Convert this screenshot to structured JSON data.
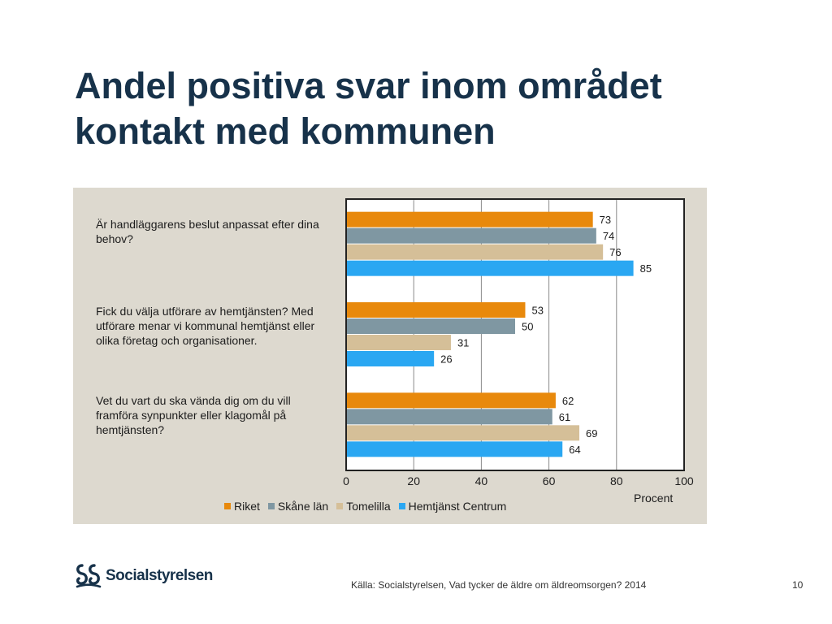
{
  "slide": {
    "title": "Andel positiva svar inom området kontakt med kommunen",
    "source": "Källa: Socialstyrelsen, Vad tycker de äldre om äldreomsorgen? 2014",
    "page_number": "10",
    "logo_text": "Socialstyrelsen"
  },
  "chart_data": {
    "type": "bar",
    "orientation": "horizontal",
    "categories": [
      "Är handläggarens beslut anpassat efter dina behov?",
      "Fick du välja utförare av hemtjänsten? Med utförare menar vi kommunal hemtjänst eller olika företag och organisationer.",
      "Vet du vart du ska vända dig om du vill framföra synpunkter eller klagomål på hemtjänsten?"
    ],
    "series": [
      {
        "name": "Riket",
        "color": "#e8890c",
        "values": [
          73,
          53,
          62
        ]
      },
      {
        "name": "Skåne län",
        "color": "#7f97a2",
        "values": [
          74,
          50,
          61
        ]
      },
      {
        "name": "Tomelilla",
        "color": "#d5bf98",
        "values": [
          76,
          31,
          69
        ]
      },
      {
        "name": "Hemtjänst Centrum",
        "color": "#2aa7f2",
        "values": [
          85,
          26,
          64
        ]
      }
    ],
    "xlim": [
      0,
      100
    ],
    "xticks": [
      "0",
      "20",
      "40",
      "60",
      "80",
      "100"
    ],
    "xlabel": "Procent",
    "grid": true,
    "legend_position": "bottom"
  }
}
